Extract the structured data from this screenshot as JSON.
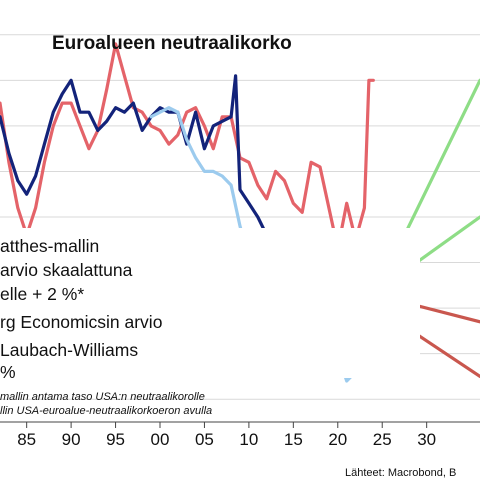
{
  "chart_data": {
    "type": "line",
    "title": "Euroalueen neutraalikorko",
    "xlabel": "",
    "ylabel": "",
    "x_ticks": [
      "85",
      "90",
      "95",
      "00",
      "05",
      "10",
      "15",
      "20",
      "25",
      "30"
    ],
    "x_tick_values": [
      1985,
      1990,
      1995,
      2000,
      2005,
      2010,
      2015,
      2020,
      2025,
      2030
    ],
    "xlim": [
      1982,
      2036
    ],
    "ylim": [
      -2.5,
      6.5
    ],
    "y_gridlines": [
      -2,
      -1,
      0,
      1,
      2,
      3,
      4,
      5,
      6
    ],
    "legend_lines": [
      "atthes-mallin",
      "arvio skaalattuna",
      "elle + 2 %*",
      "rg Economicsin arvio",
      "Laubach-Williams",
      "%"
    ],
    "notes": [
      "mallin antama taso USA:n neutraalikorolle",
      "llin USA-euroalue-neutraalikorkoeron avulla"
    ],
    "source": "Lähteet: Macrobond, B",
    "colors": {
      "red": "#e46369",
      "navy": "#13237a",
      "lightblue": "#9ccbee",
      "green": "#8edd86",
      "darkred": "#c9574e"
    },
    "series": [
      {
        "color": "red",
        "x": [
          1982,
          1983,
          1984,
          1985,
          1986,
          1987,
          1988,
          1989,
          1990,
          1991,
          1992,
          1993,
          1994,
          1995,
          1996,
          1997,
          1998,
          1999,
          2000,
          2001,
          2002,
          2003,
          2004,
          2005,
          2006,
          2007,
          2008,
          2009,
          2010,
          2011,
          2012,
          2013,
          2014,
          2015,
          2016,
          2017,
          2018,
          2019,
          2020,
          2021,
          2022,
          2023,
          2023.5,
          2024
        ],
        "y": [
          4.5,
          3.2,
          2.2,
          1.6,
          2.2,
          3.2,
          4.0,
          4.5,
          4.5,
          4.0,
          3.5,
          3.9,
          4.8,
          5.8,
          5.1,
          4.4,
          4.3,
          4.0,
          3.9,
          3.6,
          3.8,
          4.3,
          4.4,
          4.0,
          3.5,
          4.2,
          4.2,
          3.3,
          3.2,
          2.7,
          2.4,
          3.0,
          2.8,
          2.3,
          2.1,
          3.2,
          3.1,
          2.2,
          1.3,
          2.3,
          1.5,
          2.2,
          5.0,
          5.0
        ]
      },
      {
        "color": "navy",
        "x": [
          1982,
          1983,
          1984,
          1985,
          1986,
          1987,
          1988,
          1989,
          1990,
          1991,
          1992,
          1993,
          1994,
          1995,
          1996,
          1997,
          1998,
          1999,
          2000,
          2001,
          2002,
          2003,
          2004,
          2005,
          2006,
          2007,
          2008,
          2008.5,
          2009,
          2010,
          2011,
          2012,
          2013,
          2014,
          2015,
          2016,
          2017,
          2018,
          2019,
          2020,
          2021,
          2022,
          2023,
          2024
        ],
        "y": [
          4.2,
          3.4,
          2.8,
          2.5,
          2.9,
          3.6,
          4.3,
          4.7,
          5.0,
          4.3,
          4.3,
          3.9,
          4.1,
          4.4,
          4.3,
          4.5,
          3.9,
          4.2,
          4.4,
          4.3,
          4.3,
          3.6,
          4.3,
          3.5,
          4.0,
          4.1,
          4.2,
          5.1,
          2.6,
          2.3,
          2.0,
          1.6,
          1.4,
          1.6,
          1.5,
          1.7,
          1.5,
          1.6,
          1.4,
          1.2,
          1.4,
          1.3,
          1.7,
          1.2
        ]
      },
      {
        "color": "lightblue",
        "x": [
          1999,
          2000,
          2001,
          2002,
          2003,
          2004,
          2005,
          2006,
          2007,
          2008,
          2009,
          2010,
          2011,
          2012,
          2013,
          2014,
          2015,
          2016,
          2017,
          2018,
          2019,
          2020,
          2021,
          2022,
          2023,
          2024
        ],
        "y": [
          4.2,
          4.3,
          4.4,
          4.3,
          3.7,
          3.3,
          3.0,
          3.0,
          2.9,
          2.7,
          1.8,
          1.1,
          0.7,
          0.5,
          0.3,
          0.1,
          -0.1,
          -0.1,
          -0.2,
          -0.4,
          -0.6,
          -1.0,
          -1.6,
          -1.4,
          -1.1,
          -0.8
        ]
      },
      {
        "color": "green",
        "x": [
          2026,
          2036
        ],
        "y": [
          1.0,
          5.0
        ]
      },
      {
        "color": "green",
        "x": [
          2026,
          2036
        ],
        "y": [
          0.6,
          2.0
        ]
      },
      {
        "color": "darkred",
        "x": [
          2026,
          2036
        ],
        "y": [
          0.2,
          -0.3
        ]
      },
      {
        "color": "darkred",
        "x": [
          2026,
          2036
        ],
        "y": [
          -0.2,
          -1.5
        ]
      }
    ]
  }
}
